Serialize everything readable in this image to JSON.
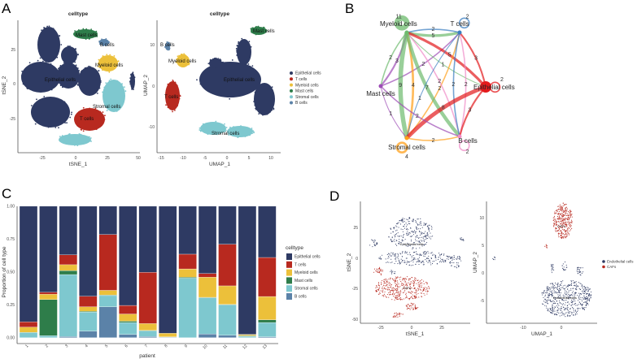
{
  "panels": {
    "a": "A",
    "b": "B",
    "c": "C",
    "d": "D"
  },
  "panel_a": {
    "tsne": {
      "title": "celltype",
      "xlabel": "tSNE_1",
      "ylabel": "tSNE_2",
      "xticks": [
        "-25",
        "0",
        "25",
        "50"
      ],
      "yticks": [
        "25",
        "0",
        "-25"
      ]
    },
    "umap": {
      "title": "celltype",
      "xlabel": "UMAP_1",
      "ylabel": "UMAP_2",
      "xticks": [
        "-15",
        "-10",
        "-5",
        "0",
        "5",
        "10"
      ],
      "yticks": [
        "10",
        "0",
        "-10"
      ]
    },
    "cluster_labels": [
      "Epithelial cells",
      "T cells",
      "Myeloid cells",
      "Mast cells",
      "Stromal cells",
      "B cells"
    ],
    "legend": [
      {
        "label": "Epithelial cells",
        "color": "#2e3a63"
      },
      {
        "label": "T cells",
        "color": "#b8291f"
      },
      {
        "label": "Myeloid cells",
        "color": "#ecc03a"
      },
      {
        "label": "Mast cells",
        "color": "#2e7d4a"
      },
      {
        "label": "Stromal cells",
        "color": "#7ec8cf"
      },
      {
        "label": "B cells",
        "color": "#5b82a8"
      }
    ]
  },
  "panel_b": {
    "nodes": [
      {
        "id": "Myeloid cells",
        "color": "#6dbb6d"
      },
      {
        "id": "T cells",
        "color": "#3a7dc0"
      },
      {
        "id": "Epithelial cells",
        "color": "#e31a1c"
      },
      {
        "id": "B cells",
        "color": "#f08cc8"
      },
      {
        "id": "Stromal cells",
        "color": "#ff9f1a"
      },
      {
        "id": "Mast cells",
        "color": "#9c4bb5"
      }
    ],
    "edges": [
      {
        "from": "Myeloid cells",
        "to": "Myeloid cells",
        "weight": "11"
      },
      {
        "from": "Myeloid cells",
        "to": "T cells",
        "weight": "5"
      },
      {
        "from": "T cells",
        "to": "Myeloid cells",
        "weight": "2"
      },
      {
        "from": "T cells",
        "to": "T cells",
        "weight": "2"
      },
      {
        "from": "Mast cells",
        "to": "Myeloid cells",
        "weight": "3"
      },
      {
        "from": "Myeloid cells",
        "to": "Mast cells",
        "weight": "2"
      },
      {
        "from": "Mast cells",
        "to": "T cells",
        "weight": "2"
      },
      {
        "from": "Stromal cells",
        "to": "Myeloid cells",
        "weight": "4"
      },
      {
        "from": "Epithelial cells",
        "to": "Myeloid cells",
        "weight": "5"
      },
      {
        "from": "Myeloid cells",
        "to": "Epithelial cells",
        "weight": "1"
      },
      {
        "from": "Stromal cells",
        "to": "T cells",
        "weight": "2"
      },
      {
        "from": "B cells",
        "to": "Myeloid cells",
        "weight": "2"
      },
      {
        "from": "Myeloid cells",
        "to": "Stromal cells",
        "weight": "9"
      },
      {
        "from": "Myeloid cells",
        "to": "B cells",
        "weight": "7"
      },
      {
        "from": "T cells",
        "to": "Stromal cells",
        "weight": "1"
      },
      {
        "from": "B cells",
        "to": "T cells",
        "weight": "2"
      },
      {
        "from": "Epithelial cells",
        "to": "T cells",
        "weight": "3"
      },
      {
        "from": "T cells",
        "to": "B cells",
        "weight": "2"
      },
      {
        "from": "Epithelial cells",
        "to": "Epithelial cells",
        "weight": "2"
      },
      {
        "from": "Epithelial cells",
        "to": "Stromal cells",
        "weight": "8"
      },
      {
        "from": "Epithelial cells",
        "to": "B cells",
        "weight": "3"
      },
      {
        "from": "Mast cells",
        "to": "B cells",
        "weight": "2"
      },
      {
        "from": "Mast cells",
        "to": "Stromal cells",
        "weight": "1"
      },
      {
        "from": "Stromal cells",
        "to": "B cells",
        "weight": "2"
      },
      {
        "from": "Stromal cells",
        "to": "Stromal cells",
        "weight": "4"
      },
      {
        "from": "B cells",
        "to": "B cells",
        "weight": "2"
      }
    ]
  },
  "chart_data": {
    "type": "bar",
    "stacked": true,
    "title": "",
    "xlabel": "patient",
    "ylabel": "Proportion of cell type",
    "ylim": [
      0,
      1
    ],
    "yticks": [
      "0.00",
      "0.25",
      "0.50",
      "0.75",
      "1.00"
    ],
    "categories": [
      "1",
      "2",
      "3",
      "4",
      "5",
      "6",
      "7",
      "8",
      "9",
      "10",
      "11",
      "12",
      "13"
    ],
    "legend_title": "celltype",
    "legend_position": "right",
    "legend_order": [
      "Epithelial cells",
      "T cells",
      "Myeloid cells",
      "Mast cells",
      "Stromal cells",
      "B cells"
    ],
    "series": [
      {
        "name": "B cells",
        "color": "#5b82a8",
        "values": [
          0,
          0,
          0.008,
          0.05,
          0.235,
          0.025,
          0.008,
          0.004,
          0,
          0.028,
          0.018,
          0,
          0.006
        ]
      },
      {
        "name": "Stromal cells",
        "color": "#7ec8cf",
        "values": [
          0.04,
          0.015,
          0.472,
          0.145,
          0.085,
          0.09,
          0.044,
          0.002,
          0.453,
          0.275,
          0.232,
          0.01,
          0.109
        ]
      },
      {
        "name": "Mast cells",
        "color": "#2e7d4a",
        "values": [
          0,
          0.275,
          0.03,
          0.005,
          0.005,
          0.01,
          0.003,
          0,
          0.007,
          0.004,
          0.003,
          0.004,
          0.021
        ]
      },
      {
        "name": "Myeloid cells",
        "color": "#ecc03a",
        "values": [
          0.04,
          0.04,
          0.045,
          0.035,
          0.035,
          0.055,
          0.052,
          0.027,
          0.063,
          0.153,
          0.141,
          0.009,
          0.177
        ]
      },
      {
        "name": "T cells",
        "color": "#b8291f",
        "values": [
          0.04,
          0.015,
          0.075,
          0.08,
          0.425,
          0.065,
          0.39,
          0,
          0.112,
          0.028,
          0.317,
          0.002,
          0.297
        ]
      },
      {
        "name": "Epithelial cells",
        "color": "#2e3a63",
        "values": [
          0.88,
          0.655,
          0.37,
          0.685,
          0.215,
          0.755,
          0.503,
          0.967,
          0.365,
          0.512,
          0.289,
          0.975,
          0.39
        ]
      }
    ]
  },
  "panel_d": {
    "tsne": {
      "xlabel": "tSNE_1",
      "ylabel": "tSNE_2",
      "xticks": [
        "-25",
        "0",
        "25"
      ],
      "yticks": [
        "25",
        "0",
        "-25",
        "-50"
      ]
    },
    "umap": {
      "xlabel": "UMAP_1",
      "ylabel": "UMAP_2",
      "xticks": [
        "-10",
        "0"
      ],
      "yticks": [
        "10",
        "5",
        "0",
        "-5"
      ]
    },
    "cluster_labels": [
      "Endothelial cells",
      "CAFs"
    ],
    "legend": [
      {
        "label": "Endothelial cells",
        "color": "#2e3a63"
      },
      {
        "label": "CAFs",
        "color": "#b8291f"
      }
    ]
  }
}
